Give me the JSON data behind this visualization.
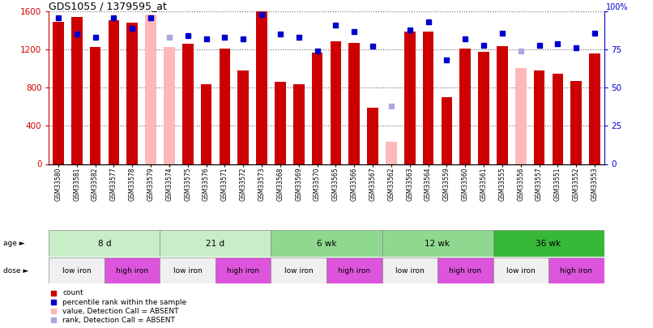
{
  "title": "GDS1055 / 1379595_at",
  "samples": [
    "GSM33580",
    "GSM33581",
    "GSM33582",
    "GSM33577",
    "GSM33578",
    "GSM33579",
    "GSM33574",
    "GSM33575",
    "GSM33576",
    "GSM33571",
    "GSM33572",
    "GSM33573",
    "GSM33568",
    "GSM33569",
    "GSM33570",
    "GSM33565",
    "GSM33566",
    "GSM33567",
    "GSM33562",
    "GSM33563",
    "GSM33564",
    "GSM33559",
    "GSM33560",
    "GSM33561",
    "GSM33555",
    "GSM33556",
    "GSM33557",
    "GSM33551",
    "GSM33552",
    "GSM33553"
  ],
  "bar_values": [
    1490,
    1540,
    1230,
    1510,
    1480,
    1570,
    1230,
    1260,
    840,
    1210,
    980,
    1600,
    860,
    840,
    1170,
    1290,
    1270,
    590,
    230,
    1390,
    1390,
    700,
    1210,
    1180,
    1240,
    1010,
    980,
    950,
    870,
    1160
  ],
  "bar_absent": [
    false,
    false,
    false,
    false,
    false,
    true,
    true,
    false,
    false,
    false,
    false,
    false,
    false,
    false,
    false,
    false,
    false,
    false,
    true,
    false,
    false,
    false,
    false,
    false,
    false,
    true,
    false,
    false,
    false,
    false
  ],
  "dot_values": [
    96,
    85,
    83,
    96,
    89,
    96,
    83,
    84,
    82,
    83,
    82,
    98,
    85,
    83,
    74,
    91,
    87,
    77,
    38,
    88,
    93,
    68,
    82,
    78,
    86,
    74,
    78,
    79,
    76,
    86
  ],
  "dot_absent": [
    false,
    false,
    false,
    false,
    false,
    false,
    true,
    false,
    false,
    false,
    false,
    false,
    false,
    false,
    false,
    false,
    false,
    false,
    true,
    false,
    false,
    false,
    false,
    false,
    false,
    true,
    false,
    false,
    false,
    false
  ],
  "age_groups": [
    {
      "label": "8 d",
      "start": 0,
      "end": 6,
      "color": "#c8eec8"
    },
    {
      "label": "21 d",
      "start": 6,
      "end": 12,
      "color": "#c8eec8"
    },
    {
      "label": "6 wk",
      "start": 12,
      "end": 18,
      "color": "#90d890"
    },
    {
      "label": "12 wk",
      "start": 18,
      "end": 24,
      "color": "#90d890"
    },
    {
      "label": "36 wk",
      "start": 24,
      "end": 30,
      "color": "#38b838"
    }
  ],
  "dose_groups": [
    {
      "label": "low iron",
      "start": 0,
      "end": 3,
      "color": "#f0f0f0"
    },
    {
      "label": "high iron",
      "start": 3,
      "end": 6,
      "color": "#dd55dd"
    },
    {
      "label": "low iron",
      "start": 6,
      "end": 9,
      "color": "#f0f0f0"
    },
    {
      "label": "high iron",
      "start": 9,
      "end": 12,
      "color": "#dd55dd"
    },
    {
      "label": "low iron",
      "start": 12,
      "end": 15,
      "color": "#f0f0f0"
    },
    {
      "label": "high iron",
      "start": 15,
      "end": 18,
      "color": "#dd55dd"
    },
    {
      "label": "low iron",
      "start": 18,
      "end": 21,
      "color": "#f0f0f0"
    },
    {
      "label": "high iron",
      "start": 21,
      "end": 24,
      "color": "#dd55dd"
    },
    {
      "label": "low iron",
      "start": 24,
      "end": 27,
      "color": "#f0f0f0"
    },
    {
      "label": "high iron",
      "start": 27,
      "end": 30,
      "color": "#dd55dd"
    }
  ],
  "ylim_left": [
    0,
    1600
  ],
  "ylim_right": [
    0,
    100
  ],
  "yticks_left": [
    0,
    400,
    800,
    1200,
    1600
  ],
  "yticks_right": [
    0,
    25,
    50,
    75,
    100
  ],
  "bar_color": "#cc0000",
  "bar_absent_color": "#ffb8b8",
  "dot_color": "#0000cc",
  "dot_absent_color": "#aaaadd",
  "bg_color": "#ffffff",
  "legend": [
    {
      "color": "#cc0000",
      "label": "count",
      "marker": "s"
    },
    {
      "color": "#0000cc",
      "label": "percentile rank within the sample",
      "marker": "s"
    },
    {
      "color": "#ffb8b8",
      "label": "value, Detection Call = ABSENT",
      "marker": "s"
    },
    {
      "color": "#aaaadd",
      "label": "rank, Detection Call = ABSENT",
      "marker": "s"
    }
  ]
}
